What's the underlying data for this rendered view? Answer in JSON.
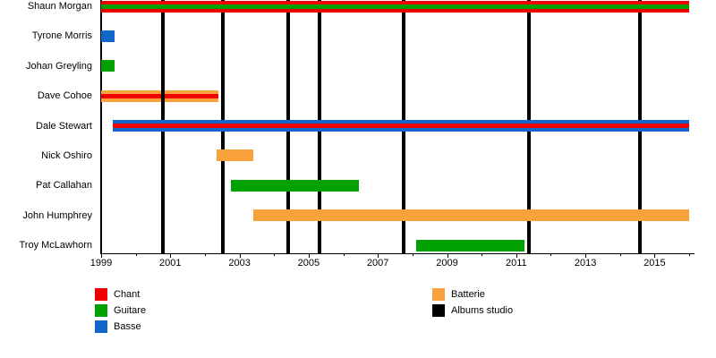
{
  "chart_data": {
    "type": "bar",
    "variant": "timeline-gantt",
    "title": "",
    "x_axis": {
      "min": 1999,
      "max": 2016.1,
      "major_tick_labels": [
        "1999",
        "2001",
        "2003",
        "2005",
        "2007",
        "2009",
        "2011",
        "2013",
        "2015"
      ],
      "major_tick_years": [
        1999,
        2001,
        2003,
        2005,
        2007,
        2009,
        2011,
        2013,
        2015
      ],
      "minor_tick_years": [
        2000,
        2002,
        2004,
        2006,
        2008,
        2010,
        2012,
        2014,
        2016
      ],
      "grid": false
    },
    "members": [
      {
        "name": "Shaun Morgan",
        "roles": [
          "Chant",
          "Guitare"
        ],
        "start": 1999.0,
        "end": 2016.0,
        "color": "red",
        "stripe": "green",
        "layer": "front"
      },
      {
        "name": "Tyrone Morris",
        "roles": [
          "Basse"
        ],
        "start": 1999.0,
        "end": 1999.4,
        "color": "blue",
        "stripe": null,
        "layer": "front"
      },
      {
        "name": "Johan Greyling",
        "roles": [
          "Guitare"
        ],
        "start": 1999.0,
        "end": 1999.4,
        "color": "green",
        "stripe": null,
        "layer": "front"
      },
      {
        "name": "Dave Cohoe",
        "roles": [
          "Batterie",
          "Chant"
        ],
        "start": 1999.0,
        "end": 2002.4,
        "color": "orange",
        "stripe": "red",
        "layer": "back"
      },
      {
        "name": "Dale Stewart",
        "roles": [
          "Basse",
          "Chant"
        ],
        "start": 1999.33,
        "end": 2016.0,
        "color": "blue",
        "stripe": "red",
        "layer": "front"
      },
      {
        "name": "Nick Oshiro",
        "roles": [
          "Batterie"
        ],
        "start": 2002.35,
        "end": 2003.4,
        "color": "orange",
        "stripe": null,
        "layer": "front"
      },
      {
        "name": "Pat Callahan",
        "roles": [
          "Guitare"
        ],
        "start": 2002.75,
        "end": 2006.45,
        "color": "green",
        "stripe": null,
        "layer": "front"
      },
      {
        "name": "John Humphrey",
        "roles": [
          "Batterie"
        ],
        "start": 2003.4,
        "end": 2016.0,
        "color": "orange",
        "stripe": null,
        "layer": "front"
      },
      {
        "name": "Troy McLawhorn",
        "roles": [
          "Guitare"
        ],
        "start": 2008.1,
        "end": 2011.25,
        "color": "green",
        "stripe": null,
        "layer": "front"
      }
    ],
    "album_lines_years": [
      2000.78,
      2002.53,
      2004.42,
      2005.32,
      2007.75,
      2011.36,
      2014.57
    ],
    "legend_left": [
      {
        "label": "Chant",
        "color": "red"
      },
      {
        "label": "Guitare",
        "color": "green"
      },
      {
        "label": "Basse",
        "color": "blue"
      }
    ],
    "legend_right": [
      {
        "label": "Batterie",
        "color": "orange"
      },
      {
        "label": "Albums studio",
        "color": "black"
      }
    ],
    "colors": {
      "red": "#EE0000",
      "green": "#00A100",
      "blue": "#1166CC",
      "orange": "#F9A13A",
      "black": "#000000"
    }
  }
}
